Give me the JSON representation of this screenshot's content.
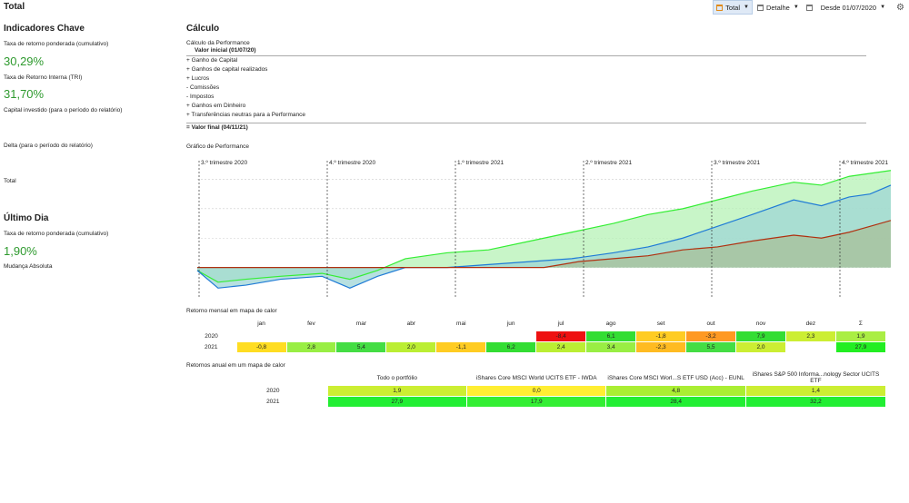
{
  "title": "Total",
  "toolbar": {
    "total_label": "Total",
    "detail_label": "Detalhe",
    "date_label": "Desde 01/07/2020"
  },
  "left": {
    "key_heading": "Indicadores Chave",
    "twr_label": "Taxa de retorno ponderada (cumulativo)",
    "twr_value": "30,29%",
    "irr_label": "Taxa de Retorno Interna (TRI)",
    "irr_value": "31,70%",
    "capital_label": "Capital investido (para o período do relatório)",
    "delta_label": "Delta (para o período do relatório)",
    "total_label": "Total",
    "lastday_heading": "Último Dia",
    "lastday_twr_label": "Taxa de retorno ponderada (cumulativo)",
    "lastday_twr_value": "1,90%",
    "abs_change_label": "Mudança Absoluta"
  },
  "calc": {
    "heading": "Cálculo",
    "subtitle": "Cálculo da Performance",
    "initial": "Valor inicial (01/07/20)",
    "rows": [
      {
        "sign": "+",
        "label": "Ganho de Capital"
      },
      {
        "sign": "+",
        "label": "Ganhos de capital realizados"
      },
      {
        "sign": "+",
        "label": "Lucros"
      },
      {
        "sign": "-",
        "label": "Comissões"
      },
      {
        "sign": "-",
        "label": "Impostos"
      },
      {
        "sign": "+",
        "label": "Ganhos em Dinheiro"
      },
      {
        "sign": "+",
        "label": "Transferências neutras para a Performance"
      }
    ],
    "final": "= Valor final (04/11/21)"
  },
  "chart_title": "Gráfico de Performance",
  "chart_data": {
    "type": "area",
    "quarters": [
      "3.º trimestre 2020",
      "4.º trimestre 2020",
      "1.º trimestre 2021",
      "2.º trimestre 2021",
      "3.º trimestre 2021",
      "4.º trimestre 2021"
    ],
    "ylim": [
      -10,
      32
    ],
    "grid": true,
    "series": [
      {
        "color": "#33ee33",
        "fill": "#b6f2b6",
        "x": [
          0,
          0.03,
          0.07,
          0.12,
          0.18,
          0.22,
          0.26,
          0.3,
          0.36,
          0.42,
          0.48,
          0.54,
          0.6,
          0.65,
          0.7,
          0.75,
          0.8,
          0.86,
          0.9,
          0.94,
          0.97,
          1.0
        ],
        "y": [
          -1,
          -5,
          -4,
          -3,
          -2,
          -4,
          -1,
          3,
          5,
          6,
          9,
          12,
          15,
          18,
          20,
          23,
          26,
          29,
          28,
          31,
          32,
          33
        ]
      },
      {
        "color": "#1f7bd6",
        "fill": "#9fd6d6",
        "x": [
          0,
          0.03,
          0.07,
          0.12,
          0.18,
          0.22,
          0.26,
          0.3,
          0.36,
          0.42,
          0.48,
          0.54,
          0.6,
          0.65,
          0.7,
          0.75,
          0.8,
          0.86,
          0.9,
          0.94,
          0.97,
          1.0
        ],
        "y": [
          -1,
          -7,
          -6,
          -4,
          -3,
          -7,
          -3,
          0,
          0,
          1,
          2,
          3,
          5,
          7,
          10,
          14,
          18,
          23,
          21,
          24,
          25,
          28
        ]
      },
      {
        "color": "#b03010",
        "fill": "#a8bf98",
        "x": [
          0,
          0.5,
          0.55,
          0.6,
          0.65,
          0.7,
          0.75,
          0.8,
          0.86,
          0.9,
          0.94,
          0.97,
          1.0
        ],
        "y": [
          0,
          0,
          2,
          3,
          4,
          6,
          7,
          9,
          11,
          10,
          12,
          14,
          16
        ]
      }
    ]
  },
  "monthly": {
    "title": "Retorno mensal em mapa de calor",
    "headers": [
      "jan",
      "fev",
      "mar",
      "abr",
      "mai",
      "jun",
      "jul",
      "ago",
      "set",
      "out",
      "nov",
      "dez",
      "Σ"
    ],
    "rows": [
      {
        "year": "2020",
        "cells": [
          "",
          "",
          "",
          "",
          "",
          "",
          "-8,4",
          "6,1",
          "-1,8",
          "-3,2",
          "7,9",
          "2,3",
          "1,9"
        ],
        "colors": [
          "",
          "",
          "",
          "",
          "",
          "",
          "#ee1111",
          "#33dd33",
          "#ffcc22",
          "#ff9922",
          "#33dd33",
          "#ccee33",
          "#aaee44"
        ]
      },
      {
        "year": "2021",
        "cells": [
          "-0,8",
          "2,8",
          "5,4",
          "2,0",
          "-1,1",
          "6,2",
          "2,4",
          "3,4",
          "-2,3",
          "5,5",
          "2,0",
          "",
          "27,9"
        ],
        "colors": [
          "#ffdd22",
          "#99ee44",
          "#44dd44",
          "#bbee33",
          "#ffcc22",
          "#33dd33",
          "#bbee33",
          "#99ee44",
          "#ffbb22",
          "#44dd44",
          "#ccee33",
          "",
          "#22ee22"
        ]
      }
    ]
  },
  "annual": {
    "title": "Retornos anual em um mapa de calor",
    "headers": [
      "Todo o portfólio",
      "iShares Core MSCI World UCITS ETF - IWDA",
      "iShares Core MSCI Worl...S ETF USD (Acc) - EUNL",
      "iShares S&P 500 Informa...nology Sector UCITS ETF"
    ],
    "rows": [
      {
        "year": "2020",
        "cells": [
          "1,9",
          "0,0",
          "4,8",
          "1,4"
        ],
        "colors": [
          "#ccee33",
          "#ffee33",
          "#aaee33",
          "#ccee33"
        ]
      },
      {
        "year": "2021",
        "cells": [
          "27,9",
          "17,9",
          "28,4",
          "32,2"
        ],
        "colors": [
          "#22ee33",
          "#33ee33",
          "#22ee33",
          "#22ee33"
        ]
      }
    ]
  }
}
